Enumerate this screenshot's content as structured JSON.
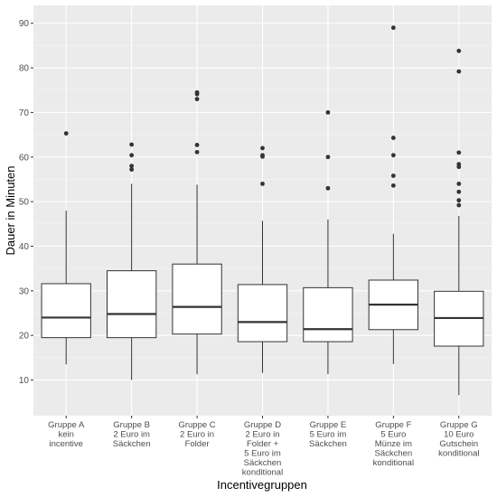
{
  "chart_data": {
    "type": "boxplot",
    "xlabel": "Incentivegruppen",
    "ylabel": "Dauer in Minuten",
    "ylim": [
      2,
      94
    ],
    "yticks": [
      10,
      20,
      30,
      40,
      50,
      60,
      70,
      80,
      90
    ],
    "grid": true,
    "legend": "none",
    "categories": [
      [
        "Gruppe A",
        "kein",
        "incentive"
      ],
      [
        "Gruppe B",
        "2 Euro im",
        "Säckchen"
      ],
      [
        "Gruppe C",
        "2 Euro in",
        "Folder"
      ],
      [
        "Gruppe D",
        "2 Euro in",
        "Folder +",
        "5 Euro im",
        "Säckchen",
        "konditional"
      ],
      [
        "Gruppe E",
        "5 Euro im",
        "Säckchen"
      ],
      [
        "Gruppe F",
        "5 Euro",
        "Münze im",
        "Säckchen",
        "konditional"
      ],
      [
        "Gruppe G",
        "10 Euro",
        "Gutschein",
        "konditional"
      ]
    ],
    "boxes": [
      {
        "min": 13.5,
        "q1": 19.5,
        "median": 24.0,
        "q3": 31.6,
        "max": 48.0,
        "outliers": [
          65.3
        ]
      },
      {
        "min": 10.0,
        "q1": 19.5,
        "median": 24.8,
        "q3": 34.5,
        "max": 54.0,
        "outliers": [
          57.2,
          58.0,
          60.4,
          62.8
        ]
      },
      {
        "min": 11.3,
        "q1": 20.3,
        "median": 26.4,
        "q3": 36.0,
        "max": 53.8,
        "outliers": [
          61.1,
          62.7,
          73.0,
          74.1,
          74.5
        ]
      },
      {
        "min": 11.6,
        "q1": 18.6,
        "median": 23.0,
        "q3": 31.4,
        "max": 45.7,
        "outliers": [
          54.0,
          60.1,
          60.4,
          62.0
        ]
      },
      {
        "min": 11.3,
        "q1": 18.6,
        "median": 21.4,
        "q3": 30.7,
        "max": 46.0,
        "outliers": [
          53.0,
          60.0,
          70.0
        ]
      },
      {
        "min": 13.6,
        "q1": 21.3,
        "median": 26.9,
        "q3": 32.4,
        "max": 42.8,
        "outliers": [
          53.6,
          55.8,
          60.4,
          64.3,
          89.0
        ]
      },
      {
        "min": 6.6,
        "q1": 17.6,
        "median": 23.9,
        "q3": 29.9,
        "max": 46.8,
        "outliers": [
          49.2,
          50.3,
          52.2,
          54.0,
          57.8,
          58.4,
          61.0,
          79.2,
          83.8
        ]
      }
    ]
  }
}
